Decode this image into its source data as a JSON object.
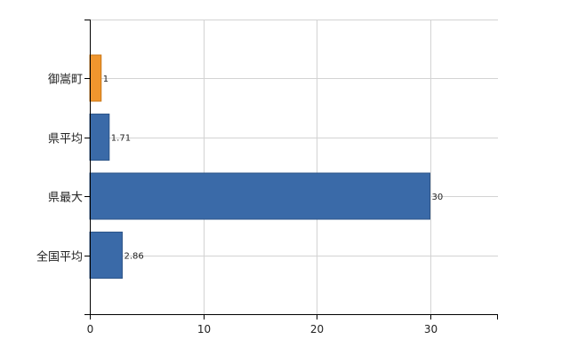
{
  "chart_data": {
    "type": "bar",
    "orientation": "horizontal",
    "categories": [
      "御嵩町",
      "県平均",
      "県最大",
      "全国平均"
    ],
    "values": [
      1,
      1.71,
      30,
      2.86
    ],
    "data_labels": [
      "1",
      "1.71",
      "30",
      "2.86"
    ],
    "bar_colors": [
      "#f0962e",
      "#3a6aa8",
      "#3a6aa8",
      "#3a6aa8"
    ],
    "bar_edge_colors": [
      "#c97514",
      "#2d5589",
      "#2d5589",
      "#2d5589"
    ],
    "xlim": [
      0,
      36
    ],
    "xticks": [
      0,
      10,
      20,
      30
    ],
    "title": "",
    "xlabel": "",
    "ylabel": "",
    "grid": true,
    "legend": "none"
  }
}
